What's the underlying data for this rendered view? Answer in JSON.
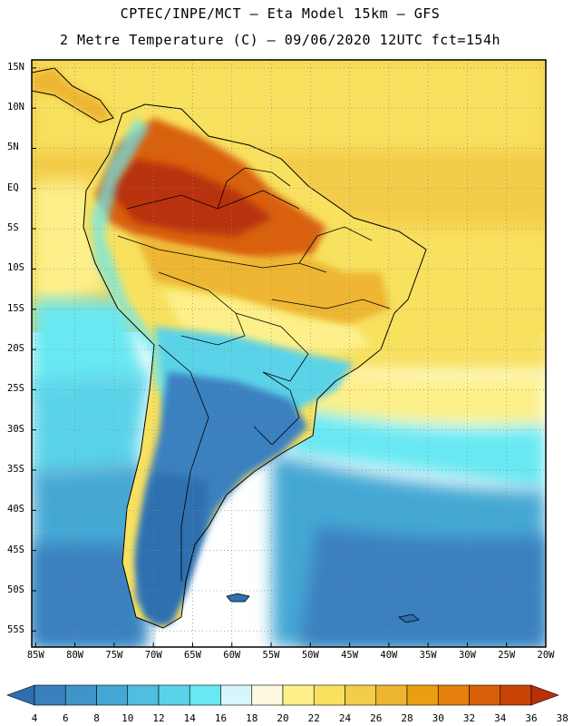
{
  "header": {
    "line1": "CPTEC/INPE/MCT –  Eta Model 15km – GFS",
    "line2": "2 Metre Temperature (C) – 09/06/2020 12UTC fct=154h"
  },
  "map": {
    "lat_labels": [
      "15N",
      "10N",
      "5N",
      "EQ",
      "5S",
      "10S",
      "15S",
      "20S",
      "25S",
      "30S",
      "35S",
      "40S",
      "45S",
      "50S",
      "55S"
    ],
    "lon_labels": [
      "85W",
      "80W",
      "75W",
      "70W",
      "65W",
      "60W",
      "55W",
      "50W",
      "45W",
      "40W",
      "35W",
      "30W",
      "25W",
      "20W"
    ],
    "lat_range": [
      -57,
      16
    ],
    "lon_range": [
      -85.5,
      -20
    ]
  },
  "colorbar": {
    "levels": [
      "4",
      "6",
      "8",
      "10",
      "12",
      "14",
      "16",
      "18",
      "20",
      "22",
      "24",
      "26",
      "28",
      "30",
      "32",
      "34",
      "36",
      "38"
    ],
    "colors": [
      "#2e6fb0",
      "#3a80bf",
      "#3f95c8",
      "#45a8d4",
      "#4fbedf",
      "#5ad3e9",
      "#68e8f2",
      "#d7f6fb",
      "#fff8e1",
      "#fdf08a",
      "#f8e15f",
      "#f3cd4a",
      "#eeb630",
      "#ea9f10",
      "#e5800d",
      "#d9600a",
      "#c84306",
      "#b83008"
    ]
  }
}
